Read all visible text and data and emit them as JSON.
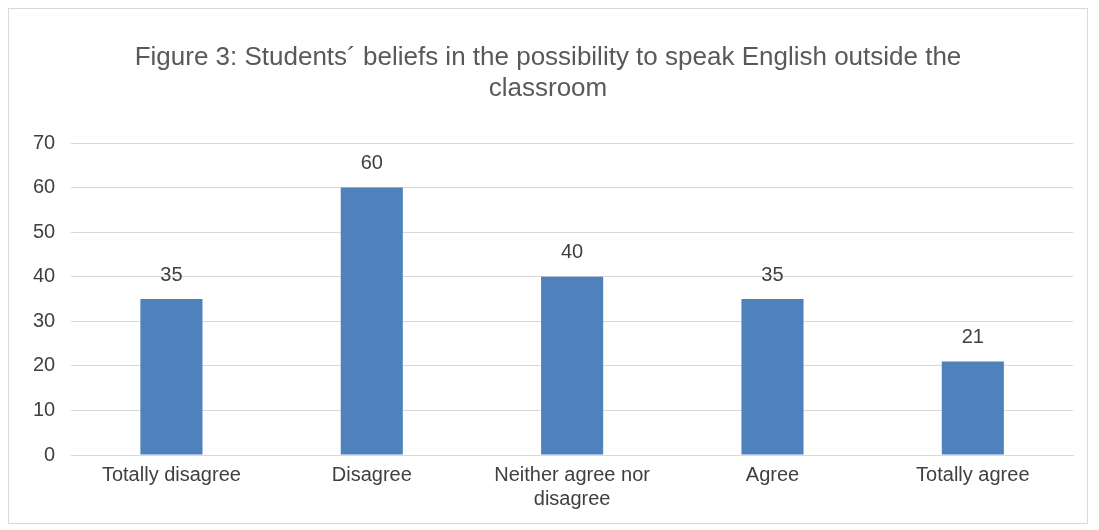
{
  "chart_data": {
    "type": "bar",
    "title": "Figure 3: Students´ beliefs in the possibility to speak English outside the classroom",
    "categories": [
      "Totally disagree",
      "Disagree",
      "Neither agree nor disagree",
      "Agree",
      "Totally agree"
    ],
    "values": [
      35,
      60,
      40,
      35,
      21
    ],
    "color": "#4f81bd",
    "ylim": [
      0,
      70
    ],
    "yticks": [
      0,
      10,
      20,
      30,
      40,
      50,
      60,
      70
    ],
    "grid": "y",
    "legend": false,
    "data_labels": true
  }
}
